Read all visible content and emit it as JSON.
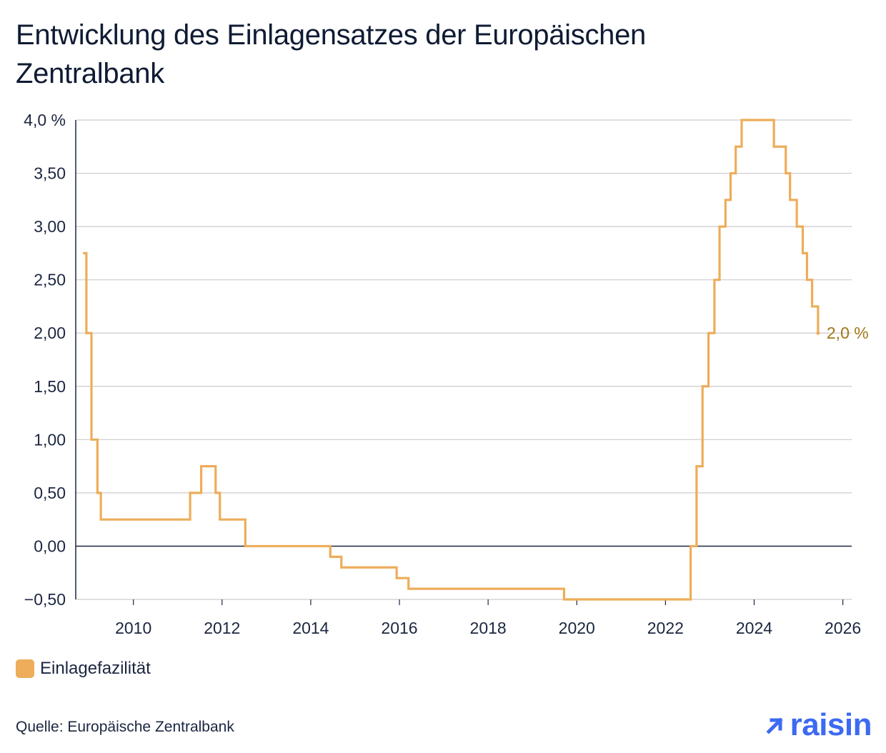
{
  "title": "Entwicklung des Einlagensatzes der Europäischen Zentralbank",
  "legend_label": "Einlagefazilität",
  "source": "Quelle: Europäische Zentralbank",
  "brand": {
    "name": "raisin",
    "color": "#3d6af2"
  },
  "colors": {
    "series": "#edad5a",
    "end_label": "#a07716",
    "grid": "#cccccc",
    "axis": "#1c2640"
  },
  "end_label": "2,0 %",
  "chart_data": {
    "type": "line",
    "step": true,
    "title": "Entwicklung des Einlagensatzes der Europäischen Zentralbank",
    "xlabel": "",
    "ylabel": "",
    "xlim": [
      2008.7,
      2026.2
    ],
    "ylim": [
      -0.5,
      4.0
    ],
    "x_ticks": [
      2010,
      2012,
      2014,
      2016,
      2018,
      2020,
      2022,
      2024,
      2026
    ],
    "x_tick_labels": [
      "2010",
      "2012",
      "2014",
      "2016",
      "2018",
      "2020",
      "2022",
      "2024",
      "2026"
    ],
    "y_ticks": [
      4.0,
      3.5,
      3.0,
      2.5,
      2.0,
      1.5,
      1.0,
      0.5,
      0.0,
      -0.5
    ],
    "y_tick_labels": [
      "4,0 %",
      "3,50",
      "3,00",
      "2,50",
      "2,00",
      "1,50",
      "1,00",
      "0,50",
      "0,00",
      "−0,50"
    ],
    "grid": true,
    "legend": "bottom-left",
    "series": [
      {
        "name": "Einlagefazilität",
        "x": [
          "2008-11-12",
          "2008-12-10",
          "2009-01-21",
          "2009-03-11",
          "2009-04-08",
          "2010-05-01",
          "2011-04-13",
          "2011-07-13",
          "2011-11-09",
          "2011-12-14",
          "2012-07-11",
          "2014-06-11",
          "2014-09-10",
          "2015-12-09",
          "2016-03-16",
          "2019-09-18",
          "2022-07-27",
          "2022-09-14",
          "2022-11-02",
          "2022-12-21",
          "2023-02-08",
          "2023-03-22",
          "2023-05-10",
          "2023-06-21",
          "2023-08-02",
          "2023-09-20",
          "2024-06-12",
          "2024-09-18",
          "2024-10-23",
          "2024-12-18",
          "2025-02-05",
          "2025-03-12",
          "2025-04-23",
          "2025-06-11"
        ],
        "y": [
          2.75,
          2.0,
          1.0,
          0.5,
          0.25,
          0.25,
          0.5,
          0.75,
          0.5,
          0.25,
          0.0,
          -0.1,
          -0.2,
          -0.3,
          -0.4,
          -0.5,
          0.0,
          0.75,
          1.5,
          2.0,
          2.5,
          3.0,
          3.25,
          3.5,
          3.75,
          4.0,
          3.75,
          3.5,
          3.25,
          3.0,
          2.75,
          2.5,
          2.25,
          2.0
        ],
        "y_end": 2.0
      }
    ]
  }
}
